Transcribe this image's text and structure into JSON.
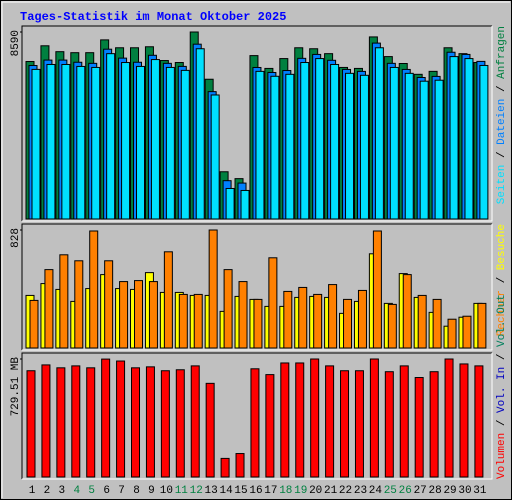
{
  "legend_separator": " / ",
  "chart_data": [
    {
      "type": "bar",
      "title": "Tages-Statistik im Monat Oktober 2025",
      "ylim": [
        0,
        8590
      ],
      "yticks": [
        8590
      ],
      "series": [
        {
          "name": "Anfragen",
          "color": "#008040",
          "values": [
            7234,
            7957,
            7686,
            7640,
            7640,
            8228,
            7866,
            7866,
            7912,
            7279,
            7188,
            8590,
            6420,
            2170,
            1854,
            7505,
            6917,
            7369,
            7866,
            7821,
            7595,
            6962,
            6917,
            8364,
            7460,
            7143,
            6646,
            6782,
            7866,
            7595,
            7188
          ]
        },
        {
          "name": "Dateien",
          "color": "#0080ff",
          "values": [
            7050,
            7300,
            7300,
            7200,
            7150,
            7800,
            7390,
            7200,
            7520,
            7150,
            7010,
            8030,
            5850,
            1760,
            1650,
            6960,
            6730,
            6820,
            7380,
            7560,
            7290,
            6870,
            6780,
            8080,
            7150,
            6870,
            6500,
            6550,
            7660,
            7560,
            7240
          ]
        },
        {
          "name": "Seiten",
          "color": "#00e0ff",
          "values": [
            6872,
            7098,
            7098,
            7008,
            6962,
            7595,
            7188,
            7008,
            7324,
            6962,
            6827,
            7821,
            5697,
            1402,
            1311,
            6782,
            6556,
            6646,
            7188,
            7369,
            7098,
            6691,
            6601,
            7866,
            6962,
            6691,
            6330,
            6375,
            7460,
            7369,
            7053
          ]
        }
      ]
    },
    {
      "type": "bar",
      "ylim": [
        0,
        828
      ],
      "yticks": [
        828
      ],
      "series": [
        {
          "name": "Besuche",
          "color": "#ffff00",
          "values": [
            369,
            452,
            411,
            327,
            417,
            515,
            417,
            411,
            529,
            390,
            390,
            369,
            369,
            257,
            362,
            341,
            292,
            292,
            355,
            362,
            355,
            243,
            327,
            661,
            313,
            522,
            355,
            250,
            153,
            216,
            313
          ]
        },
        {
          "name": "Rechner",
          "color": "#ff8000",
          "values": [
            334,
            550,
            654,
            612,
            821,
            612,
            466,
            473,
            466,
            675,
            376,
            376,
            828,
            550,
            466,
            341,
            633,
            397,
            425,
            376,
            445,
            341,
            404,
            821,
            306,
            515,
            369,
            341,
            202,
            223,
            313
          ]
        }
      ]
    },
    {
      "type": "bar",
      "ylim": [
        0,
        729.51
      ],
      "yticks": [
        {
          "value": 729.51,
          "label": "729.51 MB"
        }
      ],
      "categories": [
        "1",
        "2",
        "3",
        "4",
        "5",
        "6",
        "7",
        "8",
        "9",
        "10",
        "11",
        "12",
        "13",
        "14",
        "15",
        "16",
        "17",
        "18",
        "19",
        "20",
        "21",
        "22",
        "23",
        "24",
        "25",
        "26",
        "27",
        "28",
        "29",
        "30",
        "31"
      ],
      "category_colors": [
        "#000000",
        "#000000",
        "#000000",
        "#008040",
        "#008040",
        "#000000",
        "#000000",
        "#000000",
        "#000000",
        "#000000",
        "#008040",
        "#008040",
        "#000000",
        "#000000",
        "#000000",
        "#000000",
        "#000000",
        "#008040",
        "#008040",
        "#000000",
        "#000000",
        "#000000",
        "#000000",
        "#000000",
        "#008040",
        "#008040",
        "#000000",
        "#000000",
        "#000000",
        "#000000",
        "#000000"
      ],
      "series": [
        {
          "name": "Volumen",
          "color": "#ff0000",
          "values": [
            657,
            693,
            675,
            687,
            675,
            729,
            717,
            675,
            681,
            657,
            663,
            687,
            579,
            115,
            145,
            669,
            633,
            705,
            705,
            729.51,
            687,
            657,
            657,
            729.51,
            651,
            687,
            615,
            651,
            729.51,
            699,
            687
          ]
        }
      ],
      "extra_legend": [
        {
          "text": "Vol. In",
          "color": "#0000c0"
        },
        {
          "text": "Vol. Out",
          "color": "#00805c"
        }
      ]
    }
  ]
}
